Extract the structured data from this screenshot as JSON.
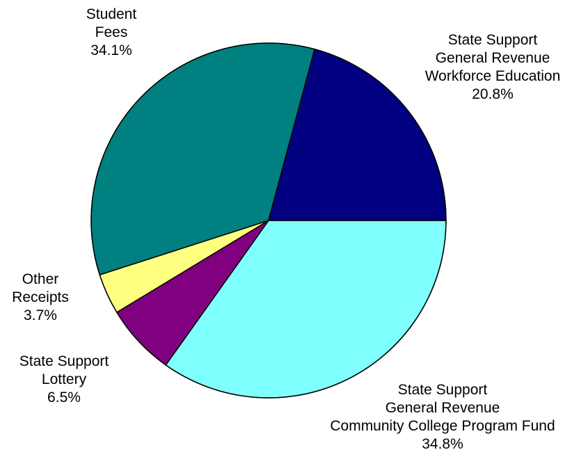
{
  "chart_data": {
    "type": "pie",
    "start_angle_deg": 0,
    "direction": "clockwise",
    "slices": [
      {
        "label_lines": [
          "State Support",
          "General Revenue",
          "Community College Program Fund"
        ],
        "value": 34.8,
        "value_label": "34.8%",
        "color": "#80FFFF"
      },
      {
        "label_lines": [
          "State Support",
          "Lottery"
        ],
        "value": 6.5,
        "value_label": "6.5%",
        "color": "#800080"
      },
      {
        "label_lines": [
          "Other",
          "Receipts"
        ],
        "value": 3.7,
        "value_label": "3.7%",
        "color": "#FFFF80"
      },
      {
        "label_lines": [
          "Student",
          "Fees"
        ],
        "value": 34.1,
        "value_label": "34.1%",
        "color": "#008080"
      },
      {
        "label_lines": [
          "State Support",
          "General Revenue",
          "Workforce Education"
        ],
        "value": 20.8,
        "value_label": "20.8%",
        "color": "#000080"
      }
    ]
  }
}
